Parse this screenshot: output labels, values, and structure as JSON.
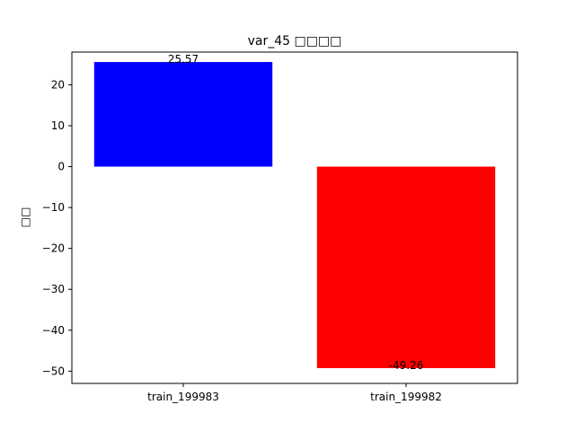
{
  "chart_data": {
    "type": "bar",
    "title": "var_45 □□□□",
    "xlabel": "",
    "ylabel": "□□",
    "categories": [
      "train_199983",
      "train_199982"
    ],
    "values": [
      25.57,
      -49.26
    ],
    "data_labels": [
      "25.57",
      "-49.26"
    ],
    "colors": [
      "#0000ff",
      "#ff0000"
    ],
    "ylim": [
      -53,
      28
    ],
    "yticks": [
      -50,
      -40,
      -30,
      -20,
      -10,
      0,
      10,
      20
    ],
    "ytick_labels": [
      "−50",
      "−40",
      "−30",
      "−20",
      "−10",
      "0",
      "10",
      "20"
    ],
    "grid": false,
    "legend": "none"
  }
}
